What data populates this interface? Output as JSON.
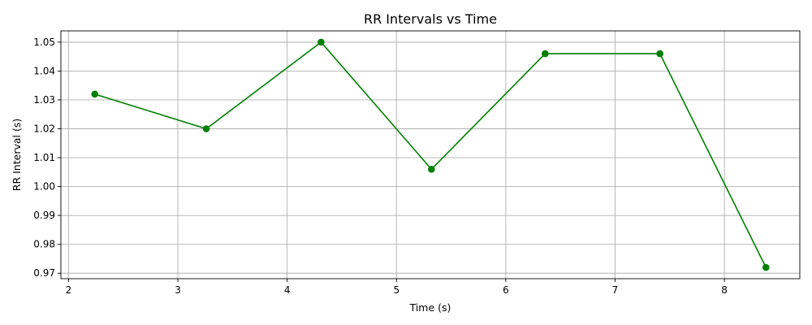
{
  "chart_data": {
    "type": "line",
    "title": "RR Intervals vs Time",
    "xlabel": "Time (s)",
    "ylabel": "RR Interval (s)",
    "xlim": [
      1.93,
      8.69
    ],
    "ylim": [
      0.9681,
      1.0539
    ],
    "xticks": [
      2,
      3,
      4,
      5,
      6,
      7,
      8
    ],
    "xtick_labels": [
      "2",
      "3",
      "4",
      "5",
      "6",
      "7",
      "8"
    ],
    "yticks": [
      0.97,
      0.98,
      0.99,
      1.0,
      1.01,
      1.02,
      1.03,
      1.04,
      1.05
    ],
    "ytick_labels": [
      "0.97",
      "0.98",
      "0.99",
      "1.00",
      "1.01",
      "1.02",
      "1.03",
      "1.04",
      "1.05"
    ],
    "grid": true,
    "series": [
      {
        "color": "#008000",
        "marker": "circle",
        "x": [
          2.24,
          3.26,
          4.31,
          5.32,
          6.36,
          7.41,
          8.38
        ],
        "y": [
          1.032,
          1.02,
          1.05,
          1.006,
          1.046,
          1.046,
          0.972
        ]
      }
    ]
  }
}
